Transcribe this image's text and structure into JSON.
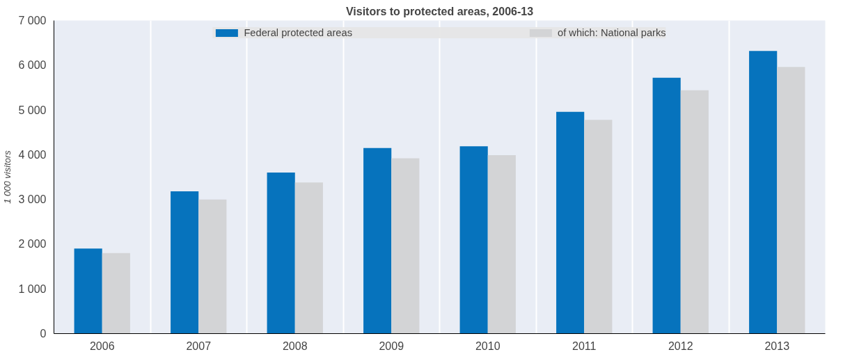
{
  "chart_data": {
    "type": "bar",
    "title": "Visitors to protected areas, 2006-13",
    "ylabel": "1 000 visitors",
    "categories": [
      "2006",
      "2007",
      "2008",
      "2009",
      "2010",
      "2011",
      "2012",
      "2013"
    ],
    "series": [
      {
        "name": "Federal protected areas",
        "color": "#0673bd",
        "values": [
          1900,
          3180,
          3600,
          4150,
          4190,
          4960,
          5720,
          6320
        ]
      },
      {
        "name": "of which: National parks",
        "color": "#d3d4d6",
        "values": [
          1800,
          3000,
          3380,
          3920,
          3990,
          4780,
          5440,
          5960
        ]
      }
    ],
    "ylim": [
      0,
      7000
    ],
    "yticks": [
      0,
      {
        "value": 1000,
        "label": "1 000"
      },
      {
        "value": 2000,
        "label": "2 000"
      },
      {
        "value": 3000,
        "label": "3 000"
      },
      {
        "value": 4000,
        "label": "4 000"
      },
      {
        "value": 5000,
        "label": "5 000"
      },
      {
        "value": 6000,
        "label": "6 000"
      },
      {
        "value": 7000,
        "label": "7 000"
      }
    ],
    "grid": "x",
    "legend": "top"
  }
}
